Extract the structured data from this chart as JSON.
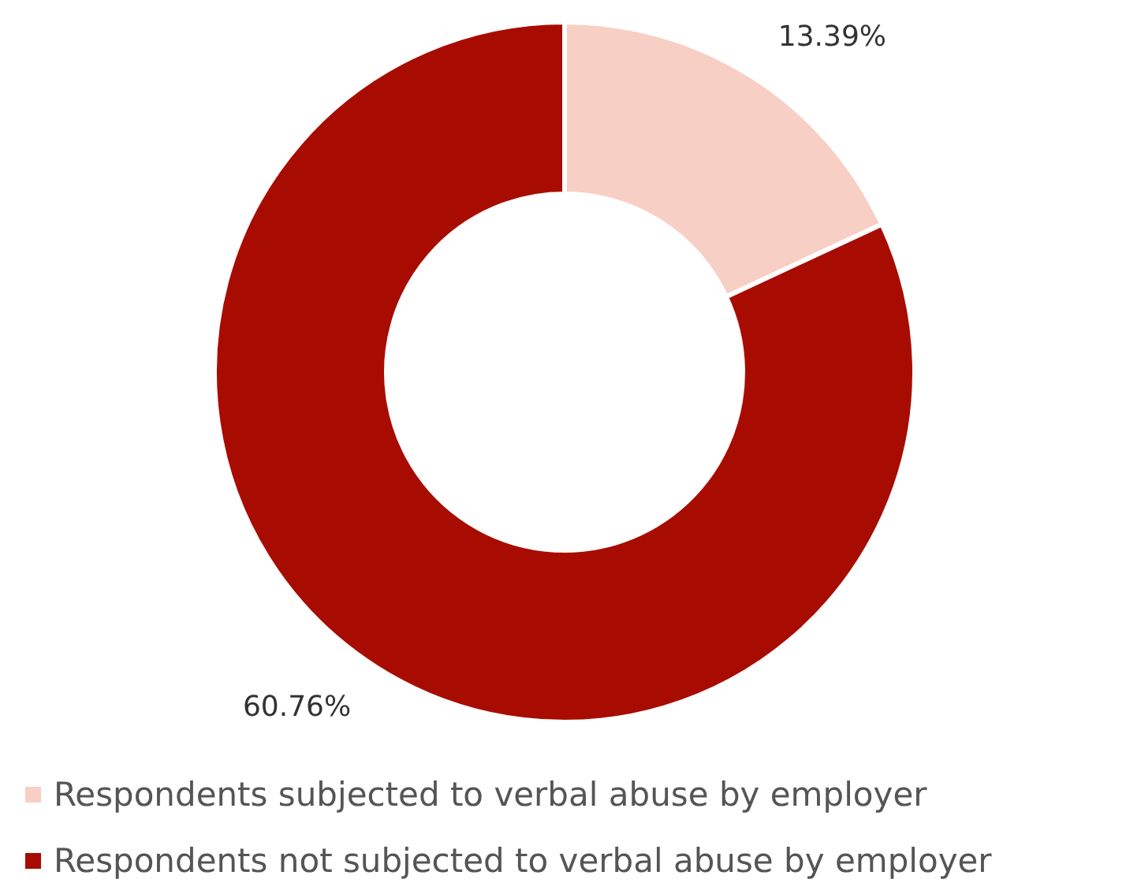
{
  "chart_data": {
    "type": "donut",
    "categories": [
      "Respondents subjected to verbal abuse by employer",
      "Respondents not subjected to verbal abuse by employer"
    ],
    "values": [
      13.39,
      60.76
    ],
    "colors": [
      "#f8cfc4",
      "#a80c00"
    ],
    "value_labels": [
      "13.39%",
      "60.76%"
    ],
    "legend": "bottom"
  }
}
